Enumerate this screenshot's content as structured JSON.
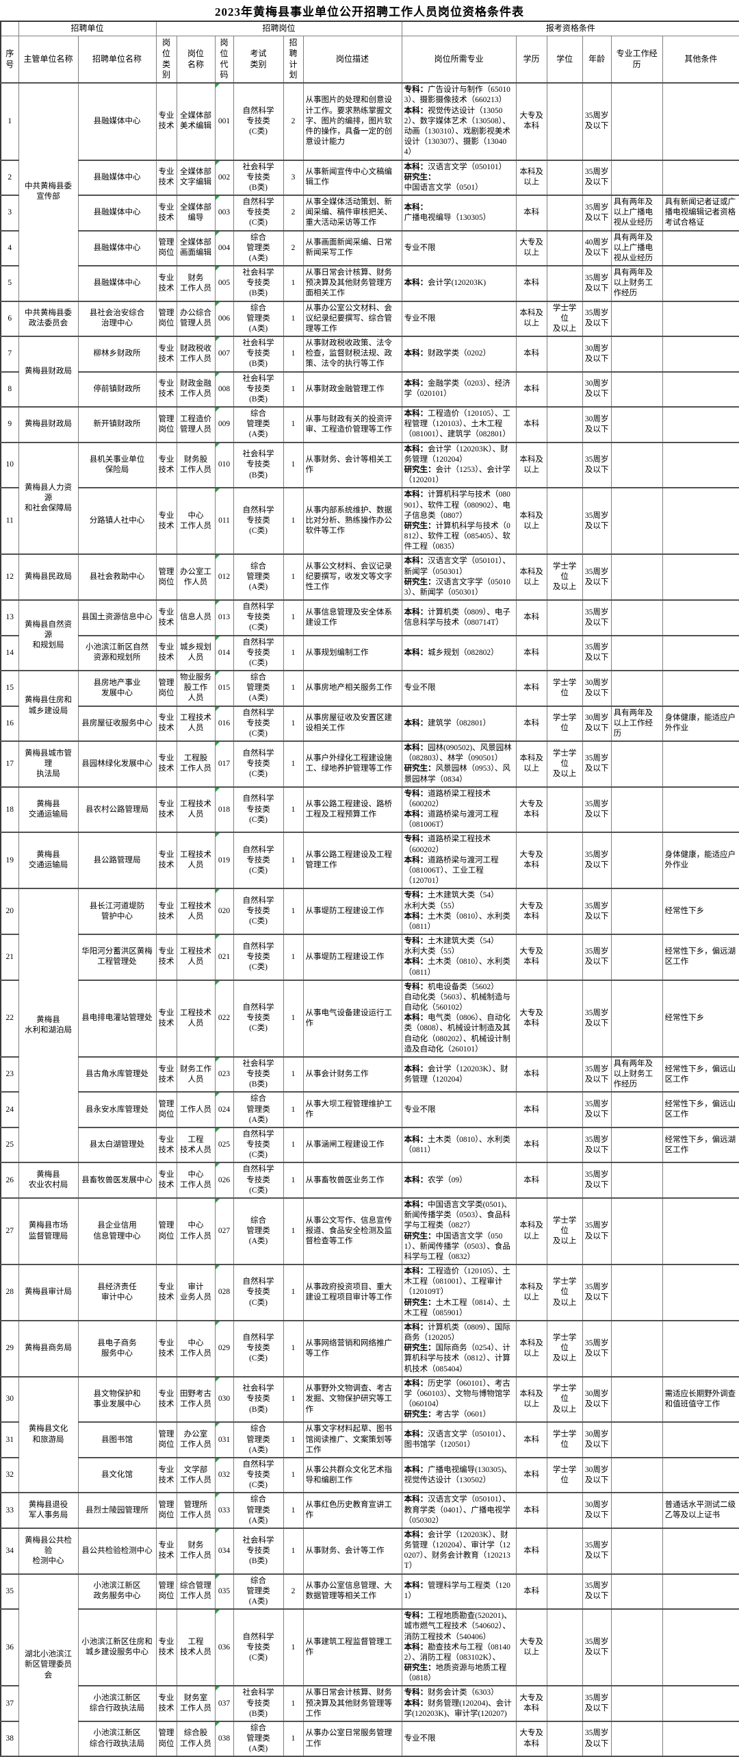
{
  "title": "2023年黄梅县事业单位公开招聘工作人员岗位资格条件表",
  "colors": {
    "grid_line": "#808080",
    "heavy_line": "#515151",
    "code_triangle_green": "#2f9e44",
    "text": "#000000",
    "background": "#ffffff"
  },
  "headers": {
    "corner": "",
    "group_unit": "招聘单位",
    "group_post": "招聘岗位",
    "group_qual": "报考资格条件",
    "sn": "序号",
    "supervisor": "主管单位名称",
    "unit": "招聘单位名称",
    "category": "岗位\n类别",
    "post_name": "岗位\n名称",
    "post_code": "岗位\n代码",
    "exam": "考试\n类别",
    "plan": "招聘\n计划",
    "desc": "岗位描述",
    "major": "岗位所需专业",
    "edu": "学历",
    "degree": "学位",
    "age": "年龄",
    "exp": "专业工作经历",
    "other": "其他条件"
  },
  "rows": [
    {
      "sn": "1",
      "sup": {
        "label": "中共黄梅县委\n宣传部",
        "span": 5
      },
      "unit": "县融媒体中心",
      "cat": "专业技术",
      "name": "全媒体部\n美术编辑",
      "code": "001",
      "exam": "自然科学\n专技类\n(C类)",
      "plan": "2",
      "desc": "从事图片的处理和创意设计工作。要求熟练掌握文字、图片的编排，图片软件的操作，具备一定的创意设计能力",
      "major": "专科：广告设计与制作（650103）、摄影摄像技术（660213）\n本科：视觉传达设计（130502）、数字媒体艺术（130508）、动画（130310）、戏剧影视美术设计（130307）、摄影（130404）",
      "edu": "大专及\n本科",
      "deg": "",
      "age": "35周岁\n及以下",
      "exp": "",
      "other": ""
    },
    {
      "sn": "2",
      "unit": "县融媒体中心",
      "cat": "专业技术",
      "name": "全媒体部\n文字编辑",
      "code": "002",
      "exam": "社会科学\n专技类\n(B类)",
      "plan": "3",
      "desc": "从事新闻宣传中心文稿编辑工作",
      "major": "本科：汉语言文学（050101）\n研究生：中国语言文学（0501）",
      "edu": "本科及\n以上",
      "deg": "",
      "age": "35周岁\n及以下",
      "exp": "",
      "other": ""
    },
    {
      "sn": "3",
      "unit": "县融媒体中心",
      "cat": "专业技术",
      "name": "全媒体部\n编导",
      "code": "003",
      "exam": "自然科学\n专技类\n(C类)",
      "plan": "2",
      "desc": "从事全媒体活动策划、新闻采编、稿件审核把关、重大活动采访等工作",
      "major": "本科：广播电视编导（130305）",
      "edu": "本科",
      "deg": "",
      "age": "35周岁\n及以下",
      "exp": "具有两年及以上广播电视从业经历",
      "other": "具有新闻记者证或广播电视编辑记者资格考试合格证"
    },
    {
      "sn": "4",
      "unit": "县融媒体中心",
      "cat": "管理岗位",
      "name": "全媒体部\n画面编辑",
      "code": "004",
      "exam": "综合\n管理类\n(A类)",
      "plan": "2",
      "desc": "从事画面新闻采编、日常新闻采写工作",
      "major": "专业不限",
      "edu": "大专及\n以上",
      "deg": "",
      "age": "40周岁\n及以下",
      "exp": "具有两年及以上广播电视从业经历",
      "other": ""
    },
    {
      "sn": "5",
      "unit": "县融媒体中心",
      "cat": "专业技术",
      "name": "财务\n工作人员",
      "code": "005",
      "exam": "社会科学\n专技类\n(B类)",
      "plan": "1",
      "desc": "从事日常会计核算、财务预决算及其他财务管理方面相关工作",
      "major": "本科：会计学(120203K)",
      "edu": "本科",
      "deg": "",
      "age": "35周岁\n及以下",
      "exp": "具有两年及以上财务工作经历",
      "other": ""
    },
    {
      "sn": "6",
      "sup": {
        "label": "中共黄梅县委\n政法委员会",
        "span": 1
      },
      "unit": "县社会治安综合\n治理中心",
      "cat": "管理岗位",
      "name": "办公综合\n管理人员",
      "code": "006",
      "exam": "综合\n管理类\n(A类)",
      "plan": "1",
      "desc": "从事办公室公文材料、会议纪录纪要撰写、综合管理等工作",
      "major": "专业不限",
      "edu": "本科及\n以上",
      "deg": "学士学位\n及以上",
      "age": "35周岁\n及以下",
      "exp": "",
      "other": ""
    },
    {
      "sn": "7",
      "sup": {
        "label": "黄梅县财政局",
        "span": 2
      },
      "unit": "柳林乡财政所",
      "cat": "专业技术",
      "name": "财政税收\n工作人员",
      "code": "007",
      "exam": "社会科学\n专技类\n(B类)",
      "plan": "1",
      "desc": "从事财政税收政策、法令检查，监督财税法规、政策、法令的执行等工作",
      "major": "本科：财政学类（0202）",
      "edu": "本科",
      "deg": "",
      "age": "30周岁\n及以下",
      "exp": "",
      "other": ""
    },
    {
      "sn": "8",
      "unit": "停前镇财政所",
      "cat": "专业技术",
      "name": "财政金融\n工作人员",
      "code": "008",
      "exam": "社会科学\n专技类\n(B类)",
      "plan": "1",
      "desc": "从事财政金融管理工作",
      "major": "本科：金融学类（0203）、经济学（020101）",
      "edu": "本科",
      "deg": "",
      "age": "30周岁\n及以下",
      "exp": "",
      "other": ""
    },
    {
      "sn": "9",
      "sup": {
        "label": "黄梅县财政局",
        "span": 1
      },
      "unit": "新开镇财政所",
      "cat": "管理岗位",
      "name": "工程造价\n管理人员",
      "code": "009",
      "exam": "综合\n管理类\n(A类)",
      "plan": "1",
      "desc": "从事与财政有关的投资评审、工程造价管理等工作",
      "major": "本科：工程造价（120105）、工程管理（120103）、土木工程（081001）、建筑学（082801）",
      "edu": "本科",
      "deg": "",
      "age": "30周岁\n及以下",
      "exp": "",
      "other": ""
    },
    {
      "sn": "10",
      "sup": {
        "label": "黄梅县人力资源\n和社会保障局",
        "span": 2
      },
      "unit": "县机关事业单位\n保险局",
      "cat": "专业技术",
      "name": "财务股\n工作人员",
      "code": "010",
      "exam": "社会科学\n专技类\n(B类)",
      "plan": "1",
      "desc": "从事财务、会计等相关工作",
      "major": "本科：会计学（120203K）、财务管理（120204）\n研究生：会计（1253）、会计学（120201）",
      "edu": "本科及\n以上",
      "deg": "",
      "age": "35周岁\n及以下",
      "exp": "",
      "other": ""
    },
    {
      "sn": "11",
      "unit": "分路镇人社中心",
      "cat": "专业技术",
      "name": "中心\n工作人员",
      "code": "011",
      "exam": "自然科学\n专技类\n(C类)",
      "plan": "1",
      "desc": "从事内部系统维护、数据比对分析、熟练操作办公软件等工作",
      "major": "本科：计算机科学与技术（080901）、软件工程（080902）、电子信息类（0807）\n研究生：计算机科学与技术（0812）、软件工程（085405）、软件工程（0835）",
      "edu": "本科及\n以上",
      "deg": "",
      "age": "35周岁\n及以下",
      "exp": "",
      "other": ""
    },
    {
      "sn": "12",
      "sup": {
        "label": "黄梅县民政局",
        "span": 1
      },
      "unit": "县社会救助中心",
      "cat": "管理岗位",
      "name": "办公室工\n作人员",
      "code": "012",
      "exam": "综合\n管理类\n(A类)",
      "plan": "1",
      "desc": "从事公文材料、会议记录纪要撰写，收发文等文字性工作",
      "major": "本科：汉语言文学（050101）、新闻学（050301）\n研究生：汉语言文字学（050103）、新闻学（050301）",
      "edu": "本科及\n以上",
      "deg": "学士学位\n及以上",
      "age": "35周岁\n及以下",
      "exp": "",
      "other": ""
    },
    {
      "sn": "13",
      "sup": {
        "label": "黄梅县自然资源\n和规划局",
        "span": 2
      },
      "unit": "县国土资源信息中心",
      "cat": "专业技术",
      "name": "信息人员",
      "code": "013",
      "exam": "自然科学\n专技类\n(C类)",
      "plan": "1",
      "desc": "从事信息管理及安全体系建设工作",
      "major": "本科：计算机类（0809）、电子信息科学与技术（080714T）",
      "edu": "本科",
      "deg": "",
      "age": "35周岁\n及以下",
      "exp": "",
      "other": ""
    },
    {
      "sn": "14",
      "unit": "小池滨江新区自然\n资源和规划所",
      "cat": "专业技术",
      "name": "城乡规划\n人员",
      "code": "014",
      "exam": "自然科学\n专技类\n(C类)",
      "plan": "1",
      "desc": "从事规划编制工作",
      "major": "本科：城乡规划（082802）",
      "edu": "本科",
      "deg": "",
      "age": "35周岁\n及以下",
      "exp": "",
      "other": ""
    },
    {
      "sn": "15",
      "sup": {
        "label": "黄梅县住房和\n城乡建设局",
        "span": 2
      },
      "unit": "县房地产事业\n发展中心",
      "cat": "管理岗位",
      "name": "物业服务\n股工作\n人员",
      "code": "015",
      "exam": "综合\n管理类\n(A类)",
      "plan": "1",
      "desc": "从事房地产相关服务工作",
      "major": "专业不限",
      "edu": "本科",
      "deg": "学士学位",
      "age": "30周岁\n及以下",
      "exp": "",
      "other": ""
    },
    {
      "sn": "16",
      "unit": "县房屋征收服务中心",
      "cat": "专业技术",
      "name": "工程技术\n人员",
      "code": "016",
      "exam": "自然科学\n专技类\n(C类)",
      "plan": "1",
      "desc": "从事房屋征收及安置区建设相关工作",
      "major": "本科：建筑学（082801）",
      "edu": "本科",
      "deg": "学士学位",
      "age": "30周岁\n及以下",
      "exp": "具有两年及以上工作经历",
      "other": "身体健康，能适应户外作业"
    },
    {
      "sn": "17",
      "sup": {
        "label": "黄梅县城市管理\n执法局",
        "span": 1
      },
      "unit": "县园林绿化发展中心",
      "cat": "专业技术",
      "name": "工程股\n工作人员",
      "code": "017",
      "exam": "自然科学\n专技类\n(C类)",
      "plan": "1",
      "desc": "从事户外绿化工程建设施工、绿地养护管理等工作",
      "major": "本科：园林(090502)、风景园林（082803）、林学（090501）\n研究生：风景园林（0953）、风景园林学（0834）",
      "edu": "本科及\n以上",
      "deg": "学士学位\n及以上",
      "age": "35周岁\n及以下",
      "exp": "",
      "other": ""
    },
    {
      "sn": "18",
      "sup": {
        "label": "黄梅县\n交通运输局",
        "span": 1
      },
      "unit": "县农村公路管理局",
      "cat": "专业技术",
      "name": "工程技术\n人员",
      "code": "018",
      "exam": "自然科学\n专技类\n(C类)",
      "plan": "1",
      "desc": "从事公路工程建设、路桥工程及工程预算工作",
      "major": "专科：道路桥梁工程技术\n（600202）\n本科：道路桥梁与渡河工程\n（081006T）",
      "edu": "大专及\n本科",
      "deg": "",
      "age": "35周岁\n及以下",
      "exp": "",
      "other": ""
    },
    {
      "sn": "19",
      "sup": {
        "label": "黄梅县\n交通运输局",
        "span": 1
      },
      "unit": "县公路管理局",
      "cat": "专业技术",
      "name": "工程技术\n人员",
      "code": "019",
      "exam": "自然科学\n专技类\n(C类)",
      "plan": "1",
      "desc": "从事公路工程建设及工程管理工作",
      "major": "专科：道路桥梁工程技术\n（600202）\n本科：道路桥梁与渡河工程\n（081006T）、工业工程\n（120701）",
      "edu": "大专及\n本科",
      "deg": "",
      "age": "35周岁\n及以下",
      "exp": "",
      "other": "身体健康，能适应户外作业"
    },
    {
      "sn": "20",
      "sup": {
        "label": "黄梅县\n水利和湖泊局",
        "span": 6
      },
      "unit": "县长江河道堤防\n管护中心",
      "cat": "专业技术",
      "name": "工程技术\n人员",
      "code": "020",
      "exam": "自然科学\n专技类\n(C类)",
      "plan": "1",
      "desc": "从事堤防工程建设工作",
      "major": "专科：土木建筑大类（54）\n水利大类（55）\n本科：土木类（0810）、水利类（0811）",
      "edu": "大专及\n本科",
      "deg": "",
      "age": "35周岁\n及以下",
      "exp": "",
      "other": "经常性下乡"
    },
    {
      "sn": "21",
      "unit": "华阳河分蓄洪区黄梅\n工程管理处",
      "cat": "专业技术",
      "name": "工程技术\n人员",
      "code": "021",
      "exam": "自然科学\n专技类\n(C类)",
      "plan": "1",
      "desc": "从事堤防工程建设工作",
      "major": "专科：土木建筑大类（54）\n水利大类（55）\n本科：土木类（0810）、水利类（0811）",
      "edu": "大专及\n本科",
      "deg": "",
      "age": "35周岁\n及以下",
      "exp": "",
      "other": "经常性下乡，偏远湖区工作"
    },
    {
      "sn": "22",
      "unit": "县电排电灌站管理处",
      "cat": "专业技术",
      "name": "工程技术\n人员",
      "code": "022",
      "exam": "自然科学\n专技类\n(C类)",
      "plan": "1",
      "desc": "从事电气设备建设运行工作",
      "major": "专科：机电设备类（5602）\n自动化类（5603）、机械制造与自动化（560102）\n本科：电气类（0806）、自动化类（0808）、机械设计制造及其自动化（080202）、机械设计制造及自动化（260101）",
      "edu": "大专及\n本科",
      "deg": "",
      "age": "35周岁\n及以下",
      "exp": "",
      "other": "经常性下乡"
    },
    {
      "sn": "23",
      "unit": "县古角水库管理处",
      "cat": "专业技术",
      "name": "财务工作\n人员",
      "code": "023",
      "exam": "社会科学\n专技类\n(B类)",
      "plan": "1",
      "desc": "从事会计财务工作",
      "major": "本科：会计学（120203K）、财务管理（120204）",
      "edu": "本科",
      "deg": "",
      "age": "35周岁\n及以下",
      "exp": "具有两年及以上财务工作经历",
      "other": "经常性下乡，偏远山区工作"
    },
    {
      "sn": "24",
      "unit": "县永安水库管理处",
      "cat": "管理岗位",
      "name": "工作人员",
      "code": "024",
      "exam": "综合\n管理类\n(A类)",
      "plan": "1",
      "desc": "从事大坝工程管理维护工作",
      "major": "专业不限",
      "edu": "本科",
      "deg": "",
      "age": "35周岁\n及以下",
      "exp": "",
      "other": "经常性下乡，偏远山区工作"
    },
    {
      "sn": "25",
      "unit": "县太白湖管理处",
      "cat": "专业技术",
      "name": "工程\n技术人员",
      "code": "025",
      "exam": "自然科学\n专技类\n(C类)",
      "plan": "1",
      "desc": "从事涵闸工程建设工作",
      "major": "本科：土木类（0810）、水利类（0811）",
      "edu": "本科",
      "deg": "",
      "age": "35周岁\n及以下",
      "exp": "",
      "other": "经常性下乡，偏远湖区工作"
    },
    {
      "sn": "26",
      "sup": {
        "label": "黄梅县\n农业农村局",
        "span": 1
      },
      "unit": "县畜牧兽医发展中心",
      "cat": "专业技术",
      "name": "中心\n工作人员",
      "code": "026",
      "exam": "自然科学\n专技类\n(C类)",
      "plan": "1",
      "desc": "从事畜牧兽医业务工作",
      "major": "本科：农学（09）",
      "edu": "本科",
      "deg": "",
      "age": "35周岁\n及以下",
      "exp": "",
      "other": ""
    },
    {
      "sn": "27",
      "sup": {
        "label": "黄梅县市场\n监督管理局",
        "span": 1
      },
      "unit": "县企业信用\n信息管理中心",
      "cat": "管理岗位",
      "name": "中心\n工作人员",
      "code": "027",
      "exam": "综合\n管理类\n(A类)",
      "plan": "1",
      "desc": "从事公文写作、信息宣传报道、食品安全检测及监督检查等工作",
      "major": "本科：中国语言文学类(0501)、新闻传播学类（0503）、食品科学与工程类（0827）\n研究生：中国语言文学（0501）、新闻传播学（0503）、食品科学与工程（0832）",
      "edu": "本科及\n以上",
      "deg": "学士学位\n及以上",
      "age": "35周岁\n及以下",
      "exp": "",
      "other": ""
    },
    {
      "sn": "28",
      "sup": {
        "label": "黄梅县审计局",
        "span": 1
      },
      "unit": "县经济责任\n审计中心",
      "cat": "专业技术",
      "name": "审计\n业务人员",
      "code": "028",
      "exam": "自然科学\n专技类\n(C类)",
      "plan": "1",
      "desc": "从事政府投资项目、重大建设工程项目审计等工作",
      "major": "本科：工程造价（120105）、土木工程（081001）、工程审计（120109T）\n研究生：土木工程（0814）、土木工程（085901）",
      "edu": "本科及\n以上",
      "deg": "学士学位\n及以上",
      "age": "35周岁\n及以下",
      "exp": "",
      "other": ""
    },
    {
      "sn": "29",
      "sup": {
        "label": "黄梅县商务局",
        "span": 1
      },
      "unit": "县电子商务\n服务中心",
      "cat": "专业技术",
      "name": "中心\n工作人员",
      "code": "029",
      "exam": "自然科学\n专技类\n(C类)",
      "plan": "1",
      "desc": "从事网络营销和网络推广等工作",
      "major": "本科：计算机类（0809）、国际商务（120205）\n研究生：国际商务（0254）、计算机科学与技术（0812）、计算机技术（085404）",
      "edu": "本科及\n以上",
      "deg": "学士学位\n及以上",
      "age": "35周岁\n及以下",
      "exp": "",
      "other": ""
    },
    {
      "sn": "30",
      "sup": {
        "label": "黄梅县文化\n和旅游局",
        "span": 3
      },
      "unit": "县文物保护和\n事业发展中心",
      "cat": "专业技术",
      "name": "田野考古\n工作人员",
      "code": "030",
      "exam": "社会科学\n专技类\n(B类)",
      "plan": "1",
      "desc": "从事野外文物调查、考古发掘、文物保护研究等工作",
      "major": "本科：历史学（060101）、考古学（060103）、文物与博物馆学（060104）\n研究生：考古学（0601）",
      "edu": "本科及\n以上",
      "deg": "学士学位\n及以上",
      "age": "30周岁\n及以下",
      "exp": "",
      "other": "需适应长期野外调查和值班值守工作"
    },
    {
      "sn": "31",
      "unit": "县图书馆",
      "cat": "管理岗位",
      "name": "办公室\n工作人员",
      "code": "031",
      "exam": "综合\n管理类\n(A类)",
      "plan": "1",
      "desc": "从事文字材料起草、图书馆阅读推广、文案策划等工作",
      "major": "本科：汉语言文学（050101）、图书馆学（120501）",
      "edu": "本科",
      "deg": "学士学位",
      "age": "30周岁\n及以下",
      "exp": "",
      "other": ""
    },
    {
      "sn": "32",
      "unit": "县文化馆",
      "cat": "专业技术",
      "name": "文学部\n工作人员",
      "code": "032",
      "exam": "自然科学\n专技类\n(C类)",
      "plan": "1",
      "desc": "从事公共群众文化艺术指导和编剧工作",
      "major": "本科：广播电视编导(130305)、视觉传达设计（130502）",
      "edu": "本科",
      "deg": "学士学位",
      "age": "30周岁\n及以下",
      "exp": "",
      "other": ""
    },
    {
      "sn": "33",
      "sup": {
        "label": "黄梅县退役\n军人事务局",
        "span": 1
      },
      "unit": "县烈士陵园管理所",
      "cat": "管理岗位",
      "name": "管理所\n工作人员",
      "code": "033",
      "exam": "综合\n管理类\n(A类)",
      "plan": "1",
      "desc": "从事红色历史教育宣讲工作",
      "major": "本科：汉语言文学（050101）、教育学类（0401）、广播电视学（050302）",
      "edu": "本科",
      "deg": "",
      "age": "30周岁\n及以下",
      "exp": "",
      "other": "普通话水平测试二级乙等及以上证书"
    },
    {
      "sn": "34",
      "sup": {
        "label": "黄梅县公共检验\n检测中心",
        "span": 1
      },
      "unit": "县公共检验检测中心",
      "cat": "专业技术",
      "name": "财务\n工作人员",
      "code": "034",
      "exam": "社会科学\n专技类\n(B类)",
      "plan": "1",
      "desc": "从事财务、会计等工作",
      "major": "本科：会计学（120203K）、财务管理（120204）、审计学（120207）、财务会计教育（120213T）",
      "edu": "本科",
      "deg": "",
      "age": "35周岁\n及以下",
      "exp": "",
      "other": ""
    },
    {
      "sn": "35",
      "sup": {
        "label": "湖北小池滨江\n新区管理委员会",
        "span": 4
      },
      "unit": "小池滨江新区\n政务服务中心",
      "cat": "管理岗位",
      "name": "综合管理\n工作人员",
      "code": "035",
      "exam": "综合\n管理类\n(A类)",
      "plan": "2",
      "desc": "从事办公室信息管理、大数据管理等相关工作",
      "major": "本科：管理科学与工程类（1201）",
      "edu": "本科",
      "deg": "",
      "age": "35周岁\n及以下",
      "exp": "",
      "other": ""
    },
    {
      "sn": "36",
      "unit": "小池滨江新区住房和\n城乡建设服务中心",
      "cat": "专业技术",
      "name": "工程\n技术人员",
      "code": "036",
      "exam": "自然科学\n专技类\n(C类)",
      "plan": "1",
      "desc": "从事建筑工程监督管理工作",
      "major": "专科：工程地质勘查(520201)、城市燃气工程技术（540602）、消防工程技术（540406）\n本科：勘查技术与工程（081402）、消防工程（083102K）、\n研究生：地质资源与地质工程（0818）",
      "edu": "大专及\n以上",
      "deg": "",
      "age": "35周岁\n及以下",
      "exp": "",
      "other": ""
    },
    {
      "sn": "37",
      "unit": "小池滨江新区\n综合行政执法局",
      "cat": "专业技术",
      "name": "财务室\n工作人员",
      "code": "037",
      "exam": "社会科学\n专技类\n(B类)",
      "plan": "1",
      "desc": "从事日常会计核算、财务预决算及其他财务管理等工作",
      "major": "专科：财务会计类（6303）\n本科：财务管理(120204)、会计学(120203K)、审计学(120207)",
      "edu": "大专及\n本科",
      "deg": "",
      "age": "35周岁\n及以下",
      "exp": "",
      "other": ""
    },
    {
      "sn": "38",
      "unit": "小池滨江新区\n综合行政执法局",
      "cat": "管理岗位",
      "name": "综合股\n工作人员",
      "code": "038",
      "exam": "综合\n管理类\n(A类)",
      "plan": "1",
      "desc": "从事办公室日常服务管理工作",
      "major": "专业不限",
      "edu": "大专及\n本科",
      "deg": "",
      "age": "35周岁\n及以下",
      "exp": "",
      "other": ""
    }
  ]
}
